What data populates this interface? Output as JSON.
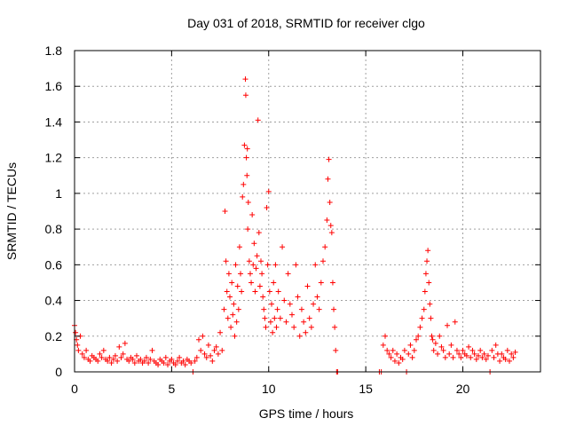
{
  "chart_data": {
    "type": "scatter",
    "title": "Day 031 of 2018, SRMTID for receiver clgo",
    "xlabel": "GPS time / hours",
    "ylabel": "SRMTID / TECUs",
    "xlim": [
      0,
      24
    ],
    "ylim": [
      0,
      1.8
    ],
    "grid": true,
    "marker": "+",
    "color": "#ff0000",
    "x_ticks": [
      {
        "value": 0,
        "label": "0"
      },
      {
        "value": 5,
        "label": "5"
      },
      {
        "value": 10,
        "label": "10"
      },
      {
        "value": 15,
        "label": "15"
      },
      {
        "value": 20,
        "label": "20"
      }
    ],
    "y_ticks": [
      {
        "value": 0,
        "label": "0"
      },
      {
        "value": 0.2,
        "label": "0.2"
      },
      {
        "value": 0.4,
        "label": "0.4"
      },
      {
        "value": 0.6,
        "label": "0.6"
      },
      {
        "value": 0.8,
        "label": "0.8"
      },
      {
        "value": 1.0,
        "label": "1"
      },
      {
        "value": 1.2,
        "label": "1.2"
      },
      {
        "value": 1.4,
        "label": "1.4"
      },
      {
        "value": 1.6,
        "label": "1.6"
      },
      {
        "value": 1.8,
        "label": "1.8"
      }
    ],
    "series": [
      {
        "name": "SRMTID",
        "x": [
          0.0,
          0.05,
          0.1,
          0.15,
          0.2,
          0.3,
          0.4,
          0.5,
          0.6,
          0.7,
          0.8,
          0.9,
          1.0,
          1.1,
          1.2,
          1.3,
          1.4,
          1.5,
          1.6,
          1.7,
          1.8,
          1.9,
          2.0,
          2.1,
          2.2,
          2.3,
          2.4,
          2.5,
          2.6,
          2.7,
          2.8,
          2.9,
          3.0,
          3.1,
          3.2,
          3.3,
          3.4,
          3.5,
          3.6,
          3.7,
          3.8,
          3.9,
          4.0,
          4.1,
          4.2,
          4.3,
          4.4,
          4.5,
          4.6,
          4.7,
          4.8,
          4.9,
          5.0,
          5.1,
          5.2,
          5.3,
          5.4,
          5.5,
          5.6,
          5.7,
          5.8,
          5.9,
          6.0,
          6.1,
          6.2,
          6.3,
          6.4,
          6.5,
          6.6,
          6.7,
          6.8,
          6.9,
          7.0,
          7.1,
          7.2,
          7.3,
          7.4,
          7.5,
          7.6,
          7.7,
          7.75,
          7.8,
          7.85,
          7.9,
          7.95,
          8.0,
          8.05,
          8.1,
          8.15,
          8.2,
          8.25,
          8.3,
          8.35,
          8.4,
          8.45,
          8.5,
          8.55,
          8.6,
          8.65,
          8.7,
          8.75,
          8.8,
          8.82,
          8.85,
          8.88,
          8.9,
          8.92,
          8.95,
          9.0,
          9.05,
          9.1,
          9.15,
          9.2,
          9.25,
          9.3,
          9.35,
          9.4,
          9.45,
          9.5,
          9.55,
          9.6,
          9.65,
          9.7,
          9.75,
          9.8,
          9.85,
          9.9,
          9.95,
          10.0,
          10.05,
          10.1,
          10.15,
          10.2,
          10.25,
          10.3,
          10.35,
          10.4,
          10.45,
          10.5,
          10.6,
          10.7,
          10.8,
          10.9,
          11.0,
          11.1,
          11.2,
          11.3,
          11.4,
          11.5,
          11.6,
          11.7,
          11.8,
          11.9,
          12.0,
          12.1,
          12.2,
          12.3,
          12.4,
          12.5,
          12.6,
          12.7,
          12.8,
          12.9,
          13.0,
          13.05,
          13.1,
          13.15,
          13.2,
          13.25,
          13.3,
          13.35,
          13.4,
          13.45,
          13.5,
          13.55,
          15.7,
          15.8,
          15.9,
          16.0,
          16.1,
          16.2,
          16.3,
          16.4,
          16.5,
          16.6,
          16.7,
          16.8,
          16.9,
          17.0,
          17.1,
          17.2,
          17.3,
          17.4,
          17.5,
          17.6,
          17.7,
          17.8,
          17.9,
          18.0,
          18.05,
          18.1,
          18.15,
          18.2,
          18.25,
          18.3,
          18.35,
          18.4,
          18.45,
          18.5,
          18.6,
          18.7,
          18.8,
          18.9,
          19.0,
          19.1,
          19.2,
          19.3,
          19.4,
          19.5,
          19.6,
          19.7,
          19.8,
          19.9,
          20.0,
          20.1,
          20.2,
          20.3,
          20.4,
          20.5,
          20.6,
          20.7,
          20.8,
          20.9,
          21.0,
          21.1,
          21.2,
          21.3,
          21.4,
          21.5,
          21.6,
          21.7,
          21.8,
          21.9,
          22.0,
          22.1,
          22.2,
          22.3,
          22.4,
          22.5,
          22.6,
          22.7
        ],
        "y": [
          0.26,
          0.22,
          0.18,
          0.15,
          0.12,
          0.2,
          0.1,
          0.08,
          0.12,
          0.07,
          0.06,
          0.09,
          0.08,
          0.07,
          0.06,
          0.1,
          0.08,
          0.12,
          0.07,
          0.06,
          0.08,
          0.05,
          0.07,
          0.09,
          0.06,
          0.14,
          0.08,
          0.1,
          0.16,
          0.07,
          0.06,
          0.08,
          0.07,
          0.05,
          0.09,
          0.06,
          0.07,
          0.05,
          0.06,
          0.08,
          0.05,
          0.07,
          0.12,
          0.06,
          0.05,
          0.04,
          0.07,
          0.06,
          0.05,
          0.08,
          0.04,
          0.06,
          0.07,
          0.05,
          0.04,
          0.06,
          0.08,
          0.05,
          0.06,
          0.04,
          0.07,
          0.06,
          0.05,
          0.0,
          0.06,
          0.08,
          0.18,
          0.12,
          0.2,
          0.1,
          0.08,
          0.15,
          0.09,
          0.06,
          0.12,
          0.14,
          0.1,
          0.22,
          0.12,
          0.35,
          0.9,
          0.62,
          0.45,
          0.3,
          0.55,
          0.42,
          0.25,
          0.5,
          0.32,
          0.38,
          0.2,
          0.6,
          0.28,
          0.48,
          0.35,
          0.7,
          0.55,
          0.45,
          0.98,
          1.05,
          1.27,
          1.64,
          1.55,
          1.2,
          1.1,
          1.25,
          0.8,
          0.95,
          0.62,
          0.55,
          0.5,
          0.88,
          0.6,
          0.72,
          0.45,
          0.58,
          0.65,
          1.41,
          0.78,
          0.48,
          0.62,
          0.55,
          0.42,
          0.35,
          0.3,
          0.25,
          0.92,
          0.6,
          1.01,
          0.45,
          0.28,
          0.38,
          0.22,
          0.5,
          0.3,
          0.6,
          0.25,
          0.35,
          0.45,
          0.3,
          0.7,
          0.4,
          0.28,
          0.55,
          0.38,
          0.32,
          0.25,
          0.6,
          0.42,
          0.2,
          0.35,
          0.28,
          0.22,
          0.48,
          0.3,
          0.25,
          0.38,
          0.6,
          0.42,
          0.35,
          0.5,
          0.62,
          0.7,
          0.85,
          1.08,
          1.19,
          0.95,
          0.82,
          0.78,
          0.5,
          0.35,
          0.25,
          0.12,
          0.0,
          0.0,
          0.0,
          0.0,
          0.15,
          0.2,
          0.12,
          0.1,
          0.08,
          0.12,
          0.06,
          0.1,
          0.05,
          0.08,
          0.07,
          0.12,
          0.0,
          0.1,
          0.15,
          0.08,
          0.12,
          0.18,
          0.2,
          0.25,
          0.3,
          0.35,
          0.45,
          0.55,
          0.62,
          0.68,
          0.5,
          0.38,
          0.3,
          0.2,
          0.18,
          0.12,
          0.16,
          0.1,
          0.2,
          0.14,
          0.12,
          0.08,
          0.26,
          0.1,
          0.15,
          0.08,
          0.28,
          0.12,
          0.1,
          0.08,
          0.12,
          0.1,
          0.09,
          0.14,
          0.08,
          0.12,
          0.1,
          0.07,
          0.09,
          0.12,
          0.08,
          0.1,
          0.07,
          0.09,
          0.0,
          0.12,
          0.08,
          0.15,
          0.1,
          0.06,
          0.1,
          0.08,
          0.07,
          0.12,
          0.06,
          0.1,
          0.08,
          0.11
        ]
      }
    ]
  }
}
